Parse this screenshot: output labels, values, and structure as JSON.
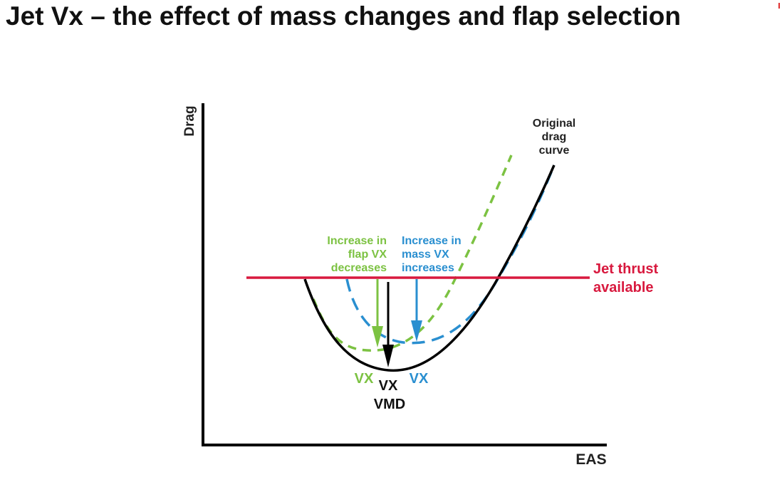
{
  "title": "Jet Vx – the effect of mass changes and flap selection",
  "axes": {
    "y_label": "Drag",
    "x_label": "EAS"
  },
  "colors": {
    "original": "#000000",
    "flap": "#7cc242",
    "mass": "#2a8fd0",
    "thrust": "#d8193e",
    "text": "#222222"
  },
  "labels": {
    "original_curve": [
      "Original",
      "drag",
      "curve"
    ],
    "flap_change": [
      "Increase in",
      "flap VX",
      "decreases"
    ],
    "mass_change": [
      "Increase in",
      "mass VX",
      "increases"
    ],
    "thrust": [
      "Jet thrust",
      "available"
    ],
    "vx_flap": "VX",
    "vx_original": "VX",
    "vx_mass": "VX",
    "vmd": "VMD"
  }
}
